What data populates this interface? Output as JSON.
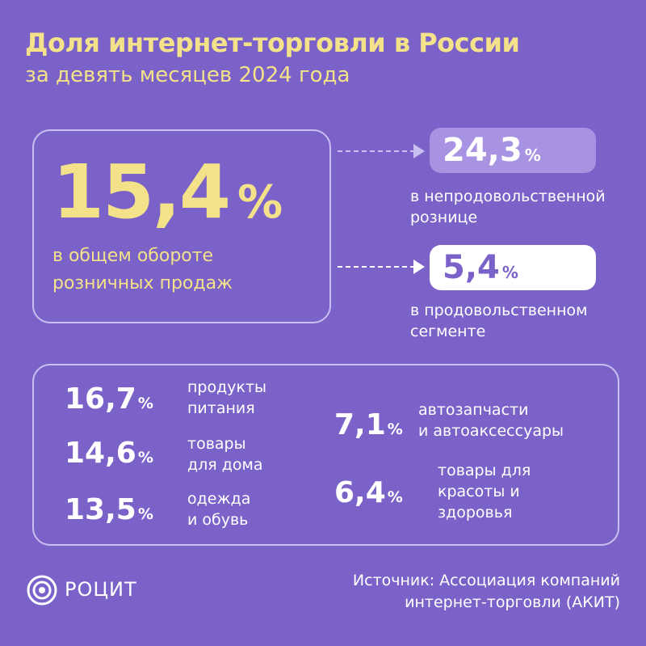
{
  "header": {
    "title": "Доля интернет-торговли в России",
    "subtitle": "за девять месяцев 2024 года"
  },
  "main": {
    "value": "15,4",
    "unit": "%",
    "label_line1": "в общем обороте",
    "label_line2": "розничных продаж"
  },
  "segments": [
    {
      "value": "24,3",
      "unit": "%",
      "label_line1": "в непродовольственной",
      "label_line2": "рознице"
    },
    {
      "value": "5,4",
      "unit": "%",
      "label_line1": "в продовольственном",
      "label_line2": "сегменте"
    }
  ],
  "categories": [
    {
      "value": "16,7",
      "unit": "%",
      "label_line1": "продукты",
      "label_line2": "питания"
    },
    {
      "value": "14,6",
      "unit": "%",
      "label_line1": "товары",
      "label_line2": "для дома"
    },
    {
      "value": "13,5",
      "unit": "%",
      "label_line1": "одежда",
      "label_line2": "и обувь"
    },
    {
      "value": "7,1",
      "unit": "%",
      "label_line1": "автозапчасти",
      "label_line2": "и автоаксессуары"
    },
    {
      "value": "6,4",
      "unit": "%",
      "label_line1": "товары для",
      "label_line2": "красоты и",
      "label_line3": "здоровья"
    }
  ],
  "footer": {
    "logo_text": "РОЦИТ",
    "logo_icon": "concentric-circles-icon",
    "source_line1": "Источник: Ассоциация компаний",
    "source_line2": "интернет-торговли (АКИТ)"
  },
  "colors": {
    "background": "#7b62c9",
    "accent_yellow": "#f3e28a",
    "light_purple": "#a893e2",
    "white": "#ffffff"
  }
}
